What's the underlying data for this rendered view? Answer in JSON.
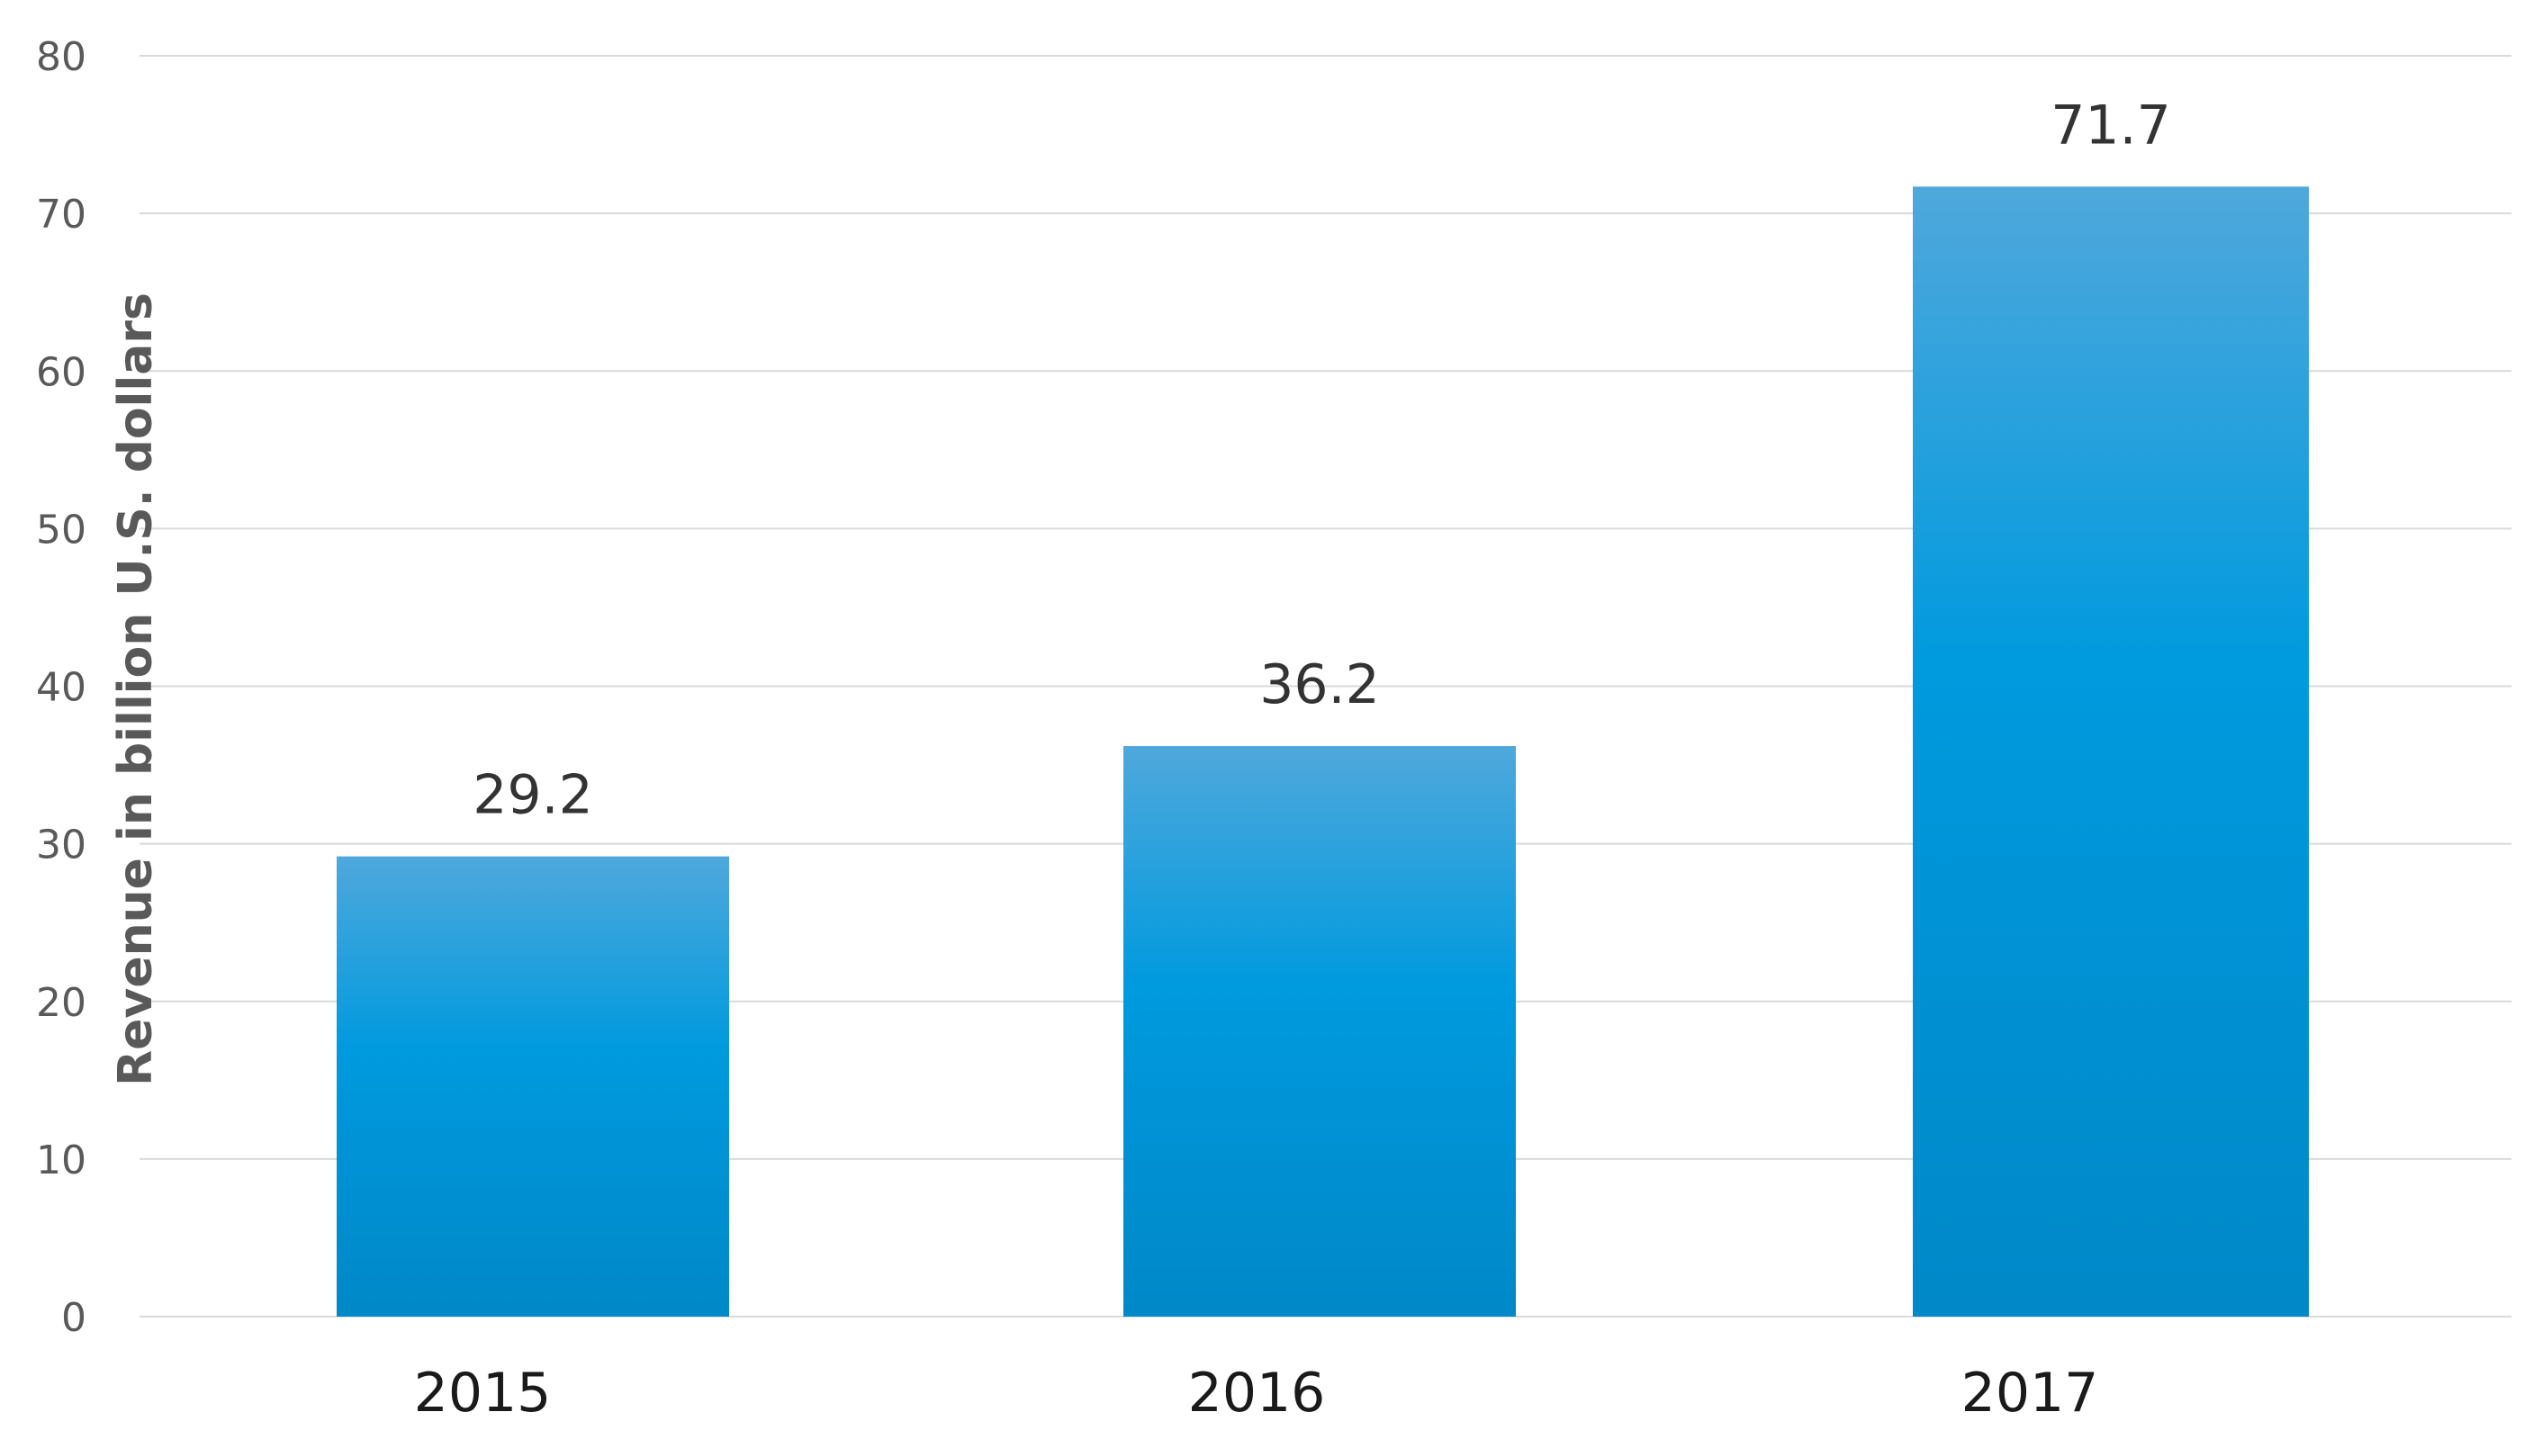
{
  "chart_data": {
    "type": "bar",
    "title": "",
    "xlabel": "",
    "ylabel": "Revenue in billion U.S. dollars",
    "categories": [
      "2015",
      "2016",
      "2017"
    ],
    "values": [
      29.2,
      36.2,
      71.7
    ],
    "data_labels": [
      "29.2",
      "36.2",
      "71.7"
    ],
    "ylim": [
      0,
      80
    ],
    "yticks": [
      0,
      10,
      20,
      30,
      40,
      50,
      60,
      70,
      80
    ],
    "ytick_labels": [
      "0",
      "10",
      "20",
      "30",
      "40",
      "50",
      "60",
      "70",
      "80"
    ],
    "grid": true,
    "legend": "none",
    "colors": {
      "bar_top": "#4fa8dc",
      "bar_mid": "#009ade",
      "bar_bottom": "#0088c8",
      "grid": "#d9d9d9"
    }
  }
}
